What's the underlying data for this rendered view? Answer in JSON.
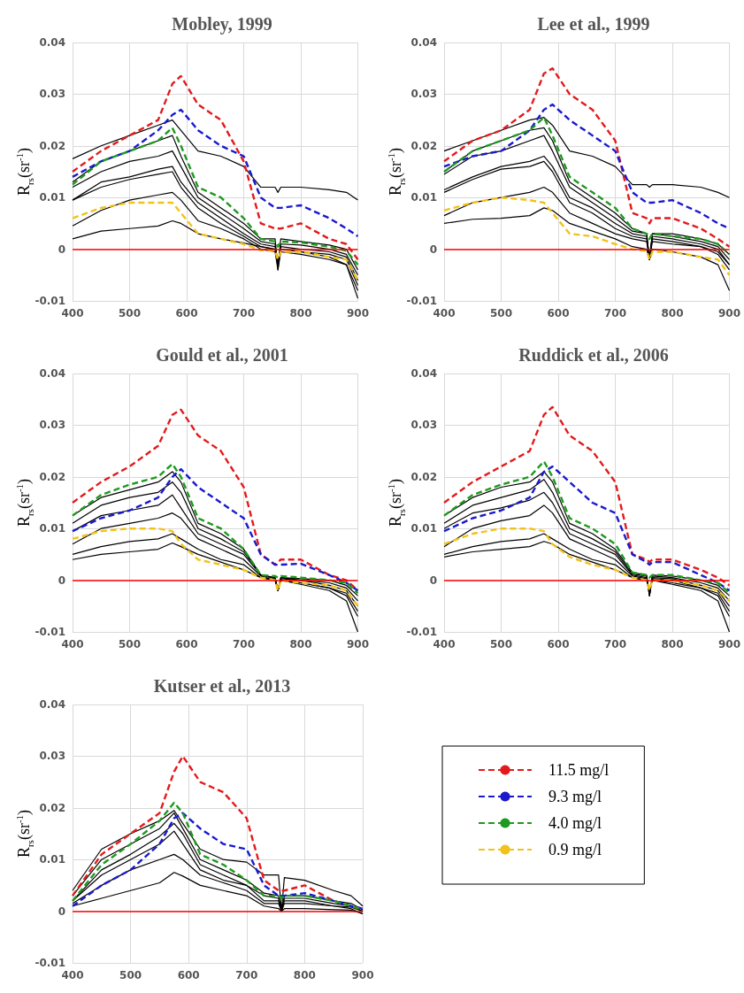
{
  "chart_data": [
    {
      "type": "line",
      "title": "Mobley, 1999",
      "ylabel": "R$_{rs}$(sr$^{-1}$)",
      "x": [
        400,
        450,
        500,
        550,
        575,
        590,
        620,
        660,
        700,
        730,
        755,
        760,
        765,
        800,
        850,
        880,
        900
      ],
      "xlim": [
        400,
        900
      ],
      "xticks": [
        400,
        500,
        600,
        700,
        800,
        900
      ],
      "ylim": [
        -0.01,
        0.04
      ],
      "yticks": [
        -0.01,
        0,
        0.01,
        0.02,
        0.03,
        0.04
      ],
      "grid": true,
      "marker": "none",
      "legend": false,
      "ref_lines": [
        {
          "axis": "y",
          "value": 0,
          "color": "#ff0000"
        }
      ],
      "series": [
        {
          "color": "#000000",
          "line_style": "solid",
          "values": [
            0.0175,
            0.02,
            0.022,
            0.024,
            0.025,
            0.023,
            0.019,
            0.018,
            0.016,
            0.012,
            0.012,
            0.011,
            0.012,
            0.012,
            0.0115,
            0.011,
            0.0095
          ]
        },
        {
          "color": "#000000",
          "line_style": "solid",
          "values": [
            0.013,
            0.017,
            0.019,
            0.021,
            0.022,
            0.018,
            0.011,
            0.008,
            0.005,
            0.002,
            0.002,
            -0.004,
            0.002,
            0.0015,
            0.0008,
            0,
            -0.004
          ]
        },
        {
          "color": "#000000",
          "line_style": "solid",
          "values": [
            0.012,
            0.015,
            0.017,
            0.018,
            0.019,
            0.016,
            0.01,
            0.007,
            0.004,
            0.0015,
            0.001,
            -0.003,
            0.001,
            0.0008,
            0,
            -0.001,
            -0.005
          ]
        },
        {
          "color": "#000000",
          "line_style": "solid",
          "values": [
            0.0095,
            0.013,
            0.014,
            0.0155,
            0.016,
            0.013,
            0.009,
            0.006,
            0.003,
            0.001,
            0.0005,
            -0.003,
            0.0005,
            0,
            -0.0005,
            -0.0015,
            -0.006
          ]
        },
        {
          "color": "#000000",
          "line_style": "solid",
          "values": [
            0.0095,
            0.012,
            0.0135,
            0.0145,
            0.015,
            0.012,
            0.008,
            0.005,
            0.0025,
            0.0005,
            0,
            -0.003,
            0,
            -0.0005,
            -0.001,
            -0.002,
            -0.007
          ]
        },
        {
          "color": "#000000",
          "line_style": "solid",
          "values": [
            0.0045,
            0.0075,
            0.0095,
            0.0105,
            0.011,
            0.0095,
            0.0055,
            0.004,
            0.002,
            0,
            -0.0005,
            -0.004,
            -0.0005,
            -0.001,
            -0.002,
            -0.003,
            -0.008
          ]
        },
        {
          "color": "#000000",
          "line_style": "solid",
          "values": [
            0.002,
            0.0035,
            0.004,
            0.0045,
            0.0055,
            0.005,
            0.003,
            0.002,
            0.0012,
            0.0005,
            0,
            -0.002,
            0,
            -0.0005,
            -0.0015,
            -0.003,
            -0.0095
          ]
        },
        {
          "color": "#e31a1c",
          "line_style": "dashed",
          "values": [
            0.015,
            0.019,
            0.022,
            0.025,
            0.032,
            0.0335,
            0.028,
            0.025,
            0.017,
            0.005,
            0.004,
            0.004,
            0.004,
            0.005,
            0.002,
            0.001,
            -0.002
          ]
        },
        {
          "color": "#1a1acc",
          "line_style": "dashed",
          "values": [
            0.014,
            0.017,
            0.019,
            0.023,
            0.026,
            0.027,
            0.023,
            0.02,
            0.018,
            0.01,
            0.008,
            0.008,
            0.008,
            0.0085,
            0.006,
            0.004,
            0.0025
          ]
        },
        {
          "color": "#1e9a1e",
          "line_style": "dashed",
          "values": [
            0.0125,
            0.017,
            0.019,
            0.021,
            0.0235,
            0.02,
            0.012,
            0.01,
            0.006,
            0.002,
            0.0015,
            0.0005,
            0.0015,
            0.0013,
            0.0005,
            -0.0003,
            -0.003
          ]
        },
        {
          "color": "#f2c21a",
          "line_style": "dashed",
          "values": [
            0.006,
            0.008,
            0.009,
            0.009,
            0.009,
            0.007,
            0.003,
            0.002,
            0.001,
            -0.0002,
            -0.0003,
            -0.002,
            -0.0005,
            -0.0005,
            -0.0015,
            -0.002,
            -0.006
          ]
        }
      ]
    },
    {
      "type": "line",
      "title": "Lee et al., 1999",
      "ylabel": "R$_{rs}$(sr$^{-1}$)",
      "x": [
        400,
        450,
        500,
        550,
        575,
        590,
        620,
        660,
        700,
        730,
        755,
        760,
        765,
        800,
        850,
        880,
        900
      ],
      "xlim": [
        400,
        900
      ],
      "xticks": [
        400,
        500,
        600,
        700,
        800,
        900
      ],
      "ylim": [
        -0.01,
        0.04
      ],
      "yticks": [
        -0.01,
        0,
        0.01,
        0.02,
        0.03,
        0.04
      ],
      "grid": true,
      "marker": "none",
      "legend": false,
      "ref_lines": [
        {
          "axis": "y",
          "value": 0,
          "color": "#ff0000"
        }
      ],
      "series": [
        {
          "color": "#000000",
          "line_style": "solid",
          "values": [
            0.019,
            0.021,
            0.023,
            0.025,
            0.0255,
            0.024,
            0.019,
            0.018,
            0.016,
            0.0125,
            0.0125,
            0.012,
            0.0125,
            0.0125,
            0.012,
            0.011,
            0.01
          ]
        },
        {
          "color": "#000000",
          "line_style": "solid",
          "values": [
            0.015,
            0.019,
            0.021,
            0.023,
            0.0235,
            0.021,
            0.013,
            0.01,
            0.007,
            0.004,
            0.003,
            -0.002,
            0.003,
            0.003,
            0.002,
            0.001,
            -0.001
          ]
        },
        {
          "color": "#000000",
          "line_style": "solid",
          "values": [
            0.0145,
            0.018,
            0.019,
            0.021,
            0.022,
            0.019,
            0.012,
            0.009,
            0.006,
            0.0035,
            0.003,
            -0.002,
            0.003,
            0.0025,
            0.0015,
            0.0005,
            -0.002
          ]
        },
        {
          "color": "#000000",
          "line_style": "solid",
          "values": [
            0.0115,
            0.014,
            0.016,
            0.017,
            0.018,
            0.016,
            0.01,
            0.008,
            0.005,
            0.003,
            0.0025,
            -0.002,
            0.0025,
            0.002,
            0.001,
            0,
            -0.003
          ]
        },
        {
          "color": "#000000",
          "line_style": "solid",
          "values": [
            0.011,
            0.0135,
            0.0155,
            0.016,
            0.017,
            0.015,
            0.009,
            0.007,
            0.004,
            0.0025,
            0.002,
            -0.002,
            0.002,
            0.0015,
            0.0005,
            -0.0005,
            -0.003
          ]
        },
        {
          "color": "#000000",
          "line_style": "solid",
          "values": [
            0.0065,
            0.009,
            0.01,
            0.011,
            0.012,
            0.011,
            0.007,
            0.005,
            0.003,
            0.002,
            0.0015,
            -0.002,
            0.0015,
            0.001,
            0.0005,
            -0.001,
            -0.004
          ]
        },
        {
          "color": "#000000",
          "line_style": "solid",
          "values": [
            0.005,
            0.0058,
            0.006,
            0.0065,
            0.008,
            0.0075,
            0.005,
            0.0035,
            0.002,
            0.0005,
            0,
            -0.002,
            0,
            -0.0005,
            -0.0015,
            -0.003,
            -0.008
          ]
        },
        {
          "color": "#e31a1c",
          "line_style": "dashed",
          "values": [
            0.017,
            0.021,
            0.023,
            0.027,
            0.034,
            0.035,
            0.03,
            0.027,
            0.021,
            0.007,
            0.006,
            0.005,
            0.006,
            0.006,
            0.004,
            0.002,
            0.0005
          ]
        },
        {
          "color": "#1a1acc",
          "line_style": "dashed",
          "values": [
            0.016,
            0.018,
            0.019,
            0.023,
            0.027,
            0.028,
            0.025,
            0.022,
            0.019,
            0.011,
            0.009,
            0.009,
            0.009,
            0.0095,
            0.007,
            0.005,
            0.004
          ]
        },
        {
          "color": "#1e9a1e",
          "line_style": "dashed",
          "values": [
            0.015,
            0.019,
            0.021,
            0.023,
            0.0255,
            0.022,
            0.014,
            0.011,
            0.008,
            0.004,
            0.003,
            0.002,
            0.003,
            0.0025,
            0.002,
            0.001,
            -0.001
          ]
        },
        {
          "color": "#f2c21a",
          "line_style": "dashed",
          "values": [
            0.0075,
            0.009,
            0.01,
            0.0095,
            0.009,
            0.007,
            0.003,
            0.0025,
            0.001,
            0,
            -0.0003,
            -0.002,
            -0.0005,
            -0.0005,
            -0.0015,
            -0.002,
            -0.005
          ]
        }
      ]
    },
    {
      "type": "line",
      "title": "Gould et al., 2001",
      "ylabel": "R$_{rs}$(sr$^{-1}$)",
      "x": [
        400,
        450,
        500,
        550,
        575,
        590,
        620,
        660,
        700,
        730,
        755,
        760,
        765,
        800,
        850,
        880,
        900
      ],
      "xlim": [
        400,
        900
      ],
      "xticks": [
        400,
        500,
        600,
        700,
        800,
        900
      ],
      "ylim": [
        -0.01,
        0.04
      ],
      "yticks": [
        -0.01,
        0,
        0.01,
        0.02,
        0.03,
        0.04
      ],
      "grid": true,
      "marker": "none",
      "legend": false,
      "ref_lines": [
        {
          "axis": "y",
          "value": 0,
          "color": "#ff0000"
        }
      ],
      "series": [
        {
          "color": "#000000",
          "line_style": "solid",
          "values": [
            0.0125,
            0.016,
            0.0175,
            0.019,
            0.021,
            0.019,
            0.011,
            0.009,
            0.006,
            0.001,
            0.0005,
            -0.002,
            0.0005,
            0.0003,
            0,
            -0.001,
            -0.003
          ]
        },
        {
          "color": "#000000",
          "line_style": "solid",
          "values": [
            0.011,
            0.0145,
            0.016,
            0.017,
            0.019,
            0.017,
            0.01,
            0.008,
            0.0055,
            0.001,
            0.0005,
            -0.002,
            0.0005,
            0,
            -0.0005,
            -0.0015,
            -0.004
          ]
        },
        {
          "color": "#000000",
          "line_style": "solid",
          "values": [
            0.0095,
            0.0125,
            0.0135,
            0.0145,
            0.0165,
            0.014,
            0.009,
            0.007,
            0.005,
            0.001,
            0.0003,
            -0.002,
            0.0003,
            0,
            -0.001,
            -0.002,
            -0.005
          ]
        },
        {
          "color": "#000000",
          "line_style": "solid",
          "values": [
            0.007,
            0.01,
            0.011,
            0.012,
            0.013,
            0.012,
            0.008,
            0.006,
            0.004,
            0.0008,
            0,
            -0.002,
            0,
            -0.0005,
            -0.0015,
            -0.0025,
            -0.006
          ]
        },
        {
          "color": "#000000",
          "line_style": "solid",
          "values": [
            0.005,
            0.0065,
            0.0075,
            0.008,
            0.009,
            0.008,
            0.006,
            0.004,
            0.003,
            0.0005,
            0,
            -0.002,
            0,
            -0.0005,
            -0.0015,
            -0.003,
            -0.007
          ]
        },
        {
          "color": "#000000",
          "line_style": "solid",
          "values": [
            0.004,
            0.005,
            0.0055,
            0.006,
            0.0072,
            0.0065,
            0.005,
            0.0035,
            0.002,
            0.0005,
            0,
            -0.0015,
            0,
            -0.0008,
            -0.002,
            -0.004,
            -0.01
          ]
        },
        {
          "color": "#e31a1c",
          "line_style": "dashed",
          "values": [
            0.015,
            0.019,
            0.022,
            0.026,
            0.032,
            0.033,
            0.028,
            0.025,
            0.018,
            0.005,
            0.003,
            0.0035,
            0.004,
            0.004,
            0.001,
            0,
            -0.002
          ]
        },
        {
          "color": "#1a1acc",
          "line_style": "dashed",
          "values": [
            0.0095,
            0.012,
            0.0135,
            0.016,
            0.02,
            0.0215,
            0.018,
            0.015,
            0.012,
            0.005,
            0.003,
            0.003,
            0.003,
            0.0032,
            0.001,
            -0.0005,
            -0.002
          ]
        },
        {
          "color": "#1e9a1e",
          "line_style": "dashed",
          "values": [
            0.0125,
            0.0165,
            0.0185,
            0.02,
            0.0225,
            0.02,
            0.012,
            0.01,
            0.006,
            0.001,
            0.0008,
            0.0005,
            0.0008,
            0.0005,
            0,
            -0.0005,
            -0.0025
          ]
        },
        {
          "color": "#f2c21a",
          "line_style": "dashed",
          "values": [
            0.008,
            0.0095,
            0.01,
            0.01,
            0.0095,
            0.007,
            0.004,
            0.003,
            0.002,
            0.0005,
            0,
            -0.002,
            0,
            -0.0005,
            -0.001,
            -0.002,
            -0.005
          ]
        }
      ]
    },
    {
      "type": "line",
      "title": "Ruddick et al., 2006",
      "ylabel": "R$_{rs}$(sr$^{-1}$)",
      "x": [
        400,
        450,
        500,
        550,
        575,
        590,
        620,
        660,
        700,
        730,
        755,
        760,
        765,
        800,
        850,
        880,
        900
      ],
      "xlim": [
        400,
        900
      ],
      "xticks": [
        400,
        500,
        600,
        700,
        800,
        900
      ],
      "ylim": [
        -0.01,
        0.04
      ],
      "yticks": [
        -0.01,
        0,
        0.01,
        0.02,
        0.03,
        0.04
      ],
      "grid": true,
      "marker": "none",
      "legend": false,
      "ref_lines": [
        {
          "axis": "y",
          "value": 0,
          "color": "#ff0000"
        }
      ],
      "series": [
        {
          "color": "#000000",
          "line_style": "solid",
          "values": [
            0.0125,
            0.016,
            0.018,
            0.019,
            0.021,
            0.019,
            0.011,
            0.009,
            0.006,
            0.0015,
            0.001,
            -0.003,
            0.001,
            0.0008,
            0,
            -0.001,
            -0.003
          ]
        },
        {
          "color": "#000000",
          "line_style": "solid",
          "values": [
            0.011,
            0.0145,
            0.016,
            0.0175,
            0.0195,
            0.017,
            0.01,
            0.008,
            0.0055,
            0.0012,
            0.0008,
            -0.003,
            0.0008,
            0.0005,
            -0.0005,
            -0.0015,
            -0.004
          ]
        },
        {
          "color": "#000000",
          "line_style": "solid",
          "values": [
            0.01,
            0.013,
            0.014,
            0.0155,
            0.017,
            0.015,
            0.009,
            0.007,
            0.005,
            0.001,
            0.0005,
            -0.003,
            0.0005,
            0.0003,
            -0.001,
            -0.002,
            -0.005
          ]
        },
        {
          "color": "#000000",
          "line_style": "solid",
          "values": [
            0.0065,
            0.01,
            0.0115,
            0.0125,
            0.0145,
            0.013,
            0.008,
            0.006,
            0.004,
            0.0008,
            0.0003,
            -0.002,
            0.0003,
            0,
            -0.0015,
            -0.0025,
            -0.006
          ]
        },
        {
          "color": "#000000",
          "line_style": "solid",
          "values": [
            0.005,
            0.0065,
            0.0075,
            0.008,
            0.009,
            0.008,
            0.006,
            0.004,
            0.003,
            0.0005,
            0,
            -0.002,
            0,
            -0.0005,
            -0.0015,
            -0.003,
            -0.007
          ]
        },
        {
          "color": "#000000",
          "line_style": "solid",
          "values": [
            0.0045,
            0.0055,
            0.006,
            0.0065,
            0.0075,
            0.007,
            0.005,
            0.0035,
            0.002,
            0.0005,
            0,
            -0.002,
            0,
            -0.0008,
            -0.002,
            -0.004,
            -0.01
          ]
        },
        {
          "color": "#e31a1c",
          "line_style": "dashed",
          "values": [
            0.015,
            0.019,
            0.022,
            0.025,
            0.032,
            0.0335,
            0.028,
            0.025,
            0.019,
            0.005,
            0.004,
            0.0035,
            0.004,
            0.004,
            0.002,
            0.0005,
            -0.001
          ]
        },
        {
          "color": "#1a1acc",
          "line_style": "dashed",
          "values": [
            0.0095,
            0.012,
            0.0135,
            0.016,
            0.021,
            0.022,
            0.019,
            0.015,
            0.013,
            0.005,
            0.0035,
            0.003,
            0.0035,
            0.0035,
            0.001,
            -0.0005,
            -0.002
          ]
        },
        {
          "color": "#1e9a1e",
          "line_style": "dashed",
          "values": [
            0.0125,
            0.0165,
            0.0185,
            0.02,
            0.023,
            0.02,
            0.012,
            0.01,
            0.007,
            0.0015,
            0.001,
            0.0005,
            0.001,
            0.001,
            0,
            -0.0005,
            -0.0025
          ]
        },
        {
          "color": "#f2c21a",
          "line_style": "dashed",
          "values": [
            0.007,
            0.009,
            0.01,
            0.01,
            0.0095,
            0.007,
            0.0045,
            0.003,
            0.002,
            0.0005,
            0,
            -0.002,
            0,
            0,
            -0.001,
            -0.002,
            -0.004
          ]
        }
      ]
    },
    {
      "type": "line",
      "title": "Kutser et al., 2013",
      "ylabel": "R$_{rs}$(sr$^{-1}$)",
      "x": [
        400,
        450,
        500,
        550,
        575,
        590,
        620,
        660,
        700,
        730,
        755,
        760,
        765,
        800,
        850,
        880,
        900
      ],
      "xlim": [
        400,
        900
      ],
      "xticks": [
        400,
        500,
        600,
        700,
        800,
        900
      ],
      "ylim": [
        -0.01,
        0.04
      ],
      "yticks": [
        -0.01,
        0,
        0.01,
        0.02,
        0.03,
        0.04
      ],
      "grid": true,
      "marker": "none",
      "legend": "right",
      "ref_lines": [
        {
          "axis": "y",
          "value": 0,
          "color": "#ff0000"
        }
      ],
      "series": [
        {
          "color": "#000000",
          "line_style": "solid",
          "values": [
            0.004,
            0.012,
            0.015,
            0.0175,
            0.0195,
            0.017,
            0.012,
            0.01,
            0.0095,
            0.007,
            0.007,
            0,
            0.0065,
            0.006,
            0.004,
            0.003,
            0.001
          ]
        },
        {
          "color": "#000000",
          "line_style": "solid",
          "values": [
            0.003,
            0.01,
            0.013,
            0.016,
            0.019,
            0.016,
            0.01,
            0.008,
            0.006,
            0.0035,
            0.003,
            0,
            0.003,
            0.003,
            0.002,
            0.0015,
            0.0003
          ]
        },
        {
          "color": "#000000",
          "line_style": "solid",
          "values": [
            0.002,
            0.008,
            0.011,
            0.0145,
            0.017,
            0.015,
            0.009,
            0.007,
            0.005,
            0.003,
            0.0025,
            0,
            0.0025,
            0.0025,
            0.0015,
            0.001,
            0
          ]
        },
        {
          "color": "#000000",
          "line_style": "solid",
          "values": [
            0.002,
            0.007,
            0.01,
            0.013,
            0.0155,
            0.013,
            0.008,
            0.006,
            0.005,
            0.002,
            0.002,
            0,
            0.002,
            0.002,
            0.001,
            0.0008,
            0
          ]
        },
        {
          "color": "#000000",
          "line_style": "solid",
          "values": [
            0.0015,
            0.005,
            0.008,
            0.01,
            0.011,
            0.01,
            0.007,
            0.0055,
            0.004,
            0.0015,
            0.0015,
            0,
            0.0015,
            0.0015,
            0.001,
            0.0005,
            -0.0005
          ]
        },
        {
          "color": "#000000",
          "line_style": "solid",
          "values": [
            0.001,
            0.0025,
            0.004,
            0.0055,
            0.0075,
            0.0068,
            0.005,
            0.004,
            0.003,
            0.001,
            0.0005,
            0,
            0.0005,
            0.0005,
            0.0003,
            0.0002,
            -0.0005
          ]
        },
        {
          "name": "11.5 mg/l",
          "color": "#e31a1c",
          "line_style": "dashed",
          "values": [
            0.003,
            0.011,
            0.015,
            0.019,
            0.027,
            0.03,
            0.025,
            0.023,
            0.018,
            0.006,
            0.004,
            0.004,
            0.004,
            0.005,
            0.002,
            0.001,
            0.0005
          ]
        },
        {
          "name": "9.3 mg/l",
          "color": "#1a1acc",
          "line_style": "dashed",
          "values": [
            0.001,
            0.005,
            0.008,
            0.013,
            0.018,
            0.019,
            0.016,
            0.013,
            0.012,
            0.005,
            0.003,
            0.003,
            0.003,
            0.0035,
            0.002,
            0.001,
            0.0005
          ]
        },
        {
          "name": "4.0 mg/l",
          "color": "#1e9a1e",
          "line_style": "dashed",
          "values": [
            0.002,
            0.009,
            0.013,
            0.0175,
            0.021,
            0.019,
            0.011,
            0.009,
            0.006,
            0.003,
            0.003,
            0.0025,
            0.003,
            0.003,
            0.002,
            0.001,
            0.0003
          ]
        },
        {
          "name": "0.9 mg/l",
          "color": "#f2c21a",
          "line_style": "dashed",
          "values": [
            null,
            null,
            null,
            null,
            null,
            null,
            null,
            null,
            null,
            null,
            null,
            null,
            null,
            null,
            null,
            null,
            null
          ]
        }
      ]
    }
  ]
}
